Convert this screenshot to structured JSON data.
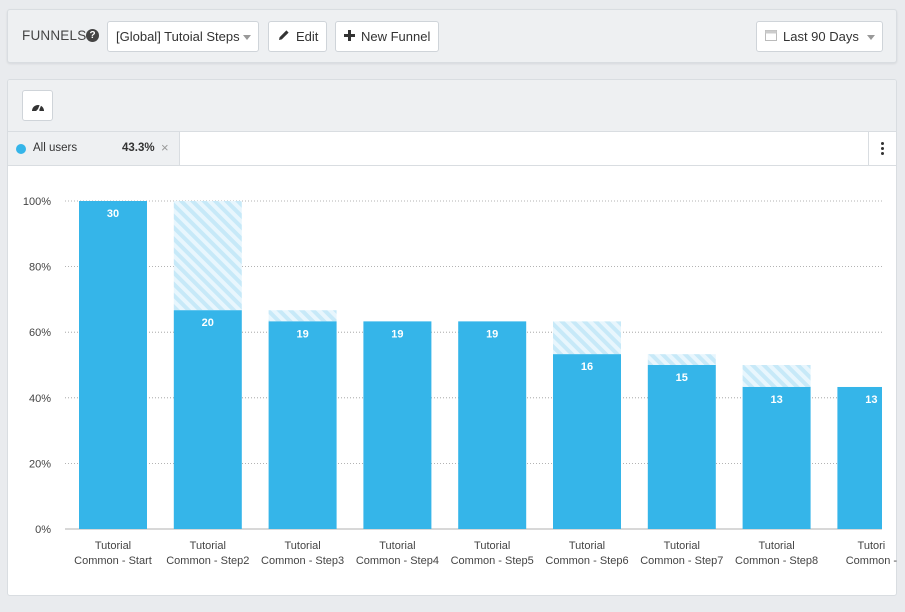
{
  "header": {
    "title": "FUNNELS",
    "help_glyph": "?",
    "funnel_select": "[Global] Tutoial Steps",
    "edit_label": "Edit",
    "new_funnel_label": "New Funnel",
    "date_range": "Last 90 Days"
  },
  "segment": {
    "label": "All users",
    "percent": "43.3%",
    "color": "#35b5e9"
  },
  "chart_data": {
    "type": "bar",
    "categories": [
      [
        "Tutorial",
        "Common - Start"
      ],
      [
        "Tutorial",
        "Common - Step2"
      ],
      [
        "Tutorial",
        "Common - Step3"
      ],
      [
        "Tutorial",
        "Common - Step4"
      ],
      [
        "Tutorial",
        "Common - Step5"
      ],
      [
        "Tutorial",
        "Common - Step6"
      ],
      [
        "Tutorial",
        "Common - Step7"
      ],
      [
        "Tutorial",
        "Common - Step8"
      ],
      [
        "Tutori",
        "Common -"
      ]
    ],
    "counts": [
      30,
      20,
      19,
      19,
      19,
      16,
      15,
      13,
      13
    ],
    "percent_values": [
      100,
      66.7,
      63.3,
      63.3,
      63.3,
      53.3,
      50,
      43.3,
      43.3
    ],
    "dropoff_top_percent": [
      null,
      100,
      66.7,
      63.3,
      63.3,
      63.3,
      53.3,
      50,
      43.3
    ],
    "ylim": [
      0,
      100
    ],
    "yticks": [
      "0%",
      "20%",
      "40%",
      "60%",
      "80%",
      "100%"
    ],
    "grid": true,
    "bar_color": "#35b5e9",
    "dropoff_color": "#c7e9f8"
  }
}
